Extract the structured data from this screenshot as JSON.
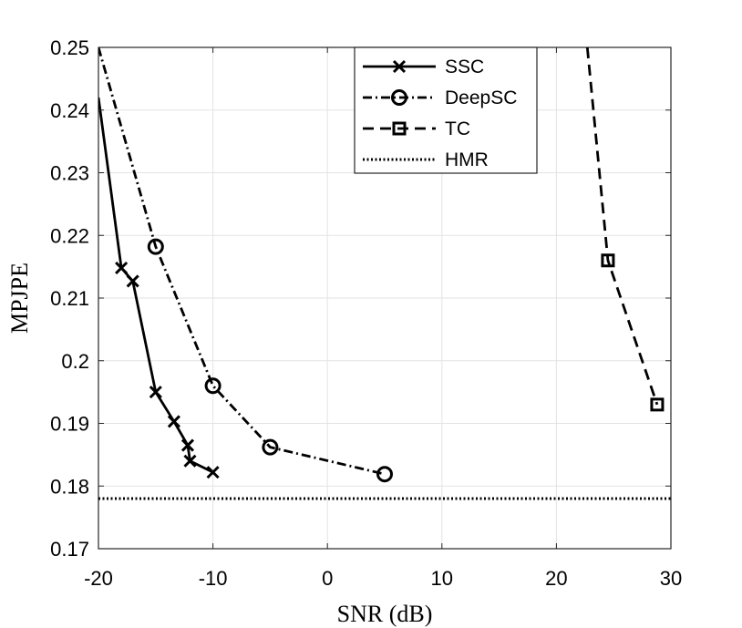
{
  "chart_data": {
    "type": "line",
    "title": "",
    "xlabel": "SNR (dB)",
    "ylabel": "MPJPE",
    "xlim": [
      -20,
      30
    ],
    "ylim": [
      0.17,
      0.25
    ],
    "xticks": [
      -20,
      -10,
      0,
      10,
      20,
      30
    ],
    "xtick_labels": [
      "-20",
      "-10",
      "0",
      "10",
      "20",
      "30"
    ],
    "yticks": [
      0.17,
      0.18,
      0.19,
      0.2,
      0.21,
      0.22,
      0.23,
      0.24,
      0.25
    ],
    "ytick_labels": [
      "0.17",
      "0.18",
      "0.19",
      "0.2",
      "0.21",
      "0.22",
      "0.23",
      "0.24",
      "0.25"
    ],
    "grid": true,
    "legend_position": "top-center",
    "series": [
      {
        "name": "SSC",
        "line_style": "solid",
        "marker": "x",
        "x": [
          -20,
          -18,
          -17,
          -15,
          -13.4,
          -12.2,
          -12,
          -10
        ],
        "y": [
          0.242,
          0.2148,
          0.2127,
          0.195,
          0.1903,
          0.1865,
          0.184,
          0.1822
        ]
      },
      {
        "name": "DeepSC",
        "line_style": "dashdot",
        "marker": "circle",
        "x": [
          -20,
          -15,
          -10,
          -5,
          5
        ],
        "y": [
          0.25,
          0.2182,
          0.196,
          0.1862,
          0.1819
        ],
        "marker_x": [
          -15,
          -10,
          -5,
          5
        ],
        "marker_y": [
          0.2182,
          0.196,
          0.1862,
          0.1819
        ]
      },
      {
        "name": "TC",
        "line_style": "dashed",
        "marker": "square",
        "x": [
          22.7,
          24.5,
          28.8
        ],
        "y": [
          0.25,
          0.216,
          0.193
        ],
        "marker_x": [
          24.5,
          28.8
        ],
        "marker_y": [
          0.216,
          0.193
        ]
      },
      {
        "name": "HMR",
        "line_style": "dotted",
        "marker": "none",
        "x": [
          -20,
          30
        ],
        "y": [
          0.178,
          0.178
        ]
      }
    ]
  }
}
